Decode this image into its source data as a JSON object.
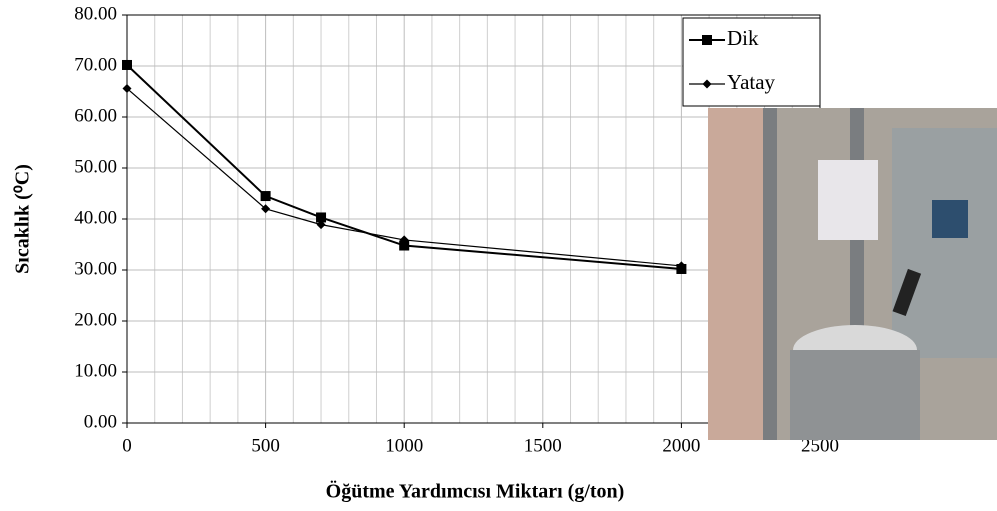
{
  "chart_data": {
    "type": "line",
    "x_label": "Öğütme Yardımcısı Miktarı (g/ton)",
    "y_label": "Sıcaklık (⁰C)",
    "series": [
      {
        "name": "Dik",
        "color": "#000000",
        "marker": "square",
        "x": [
          0,
          500,
          700,
          1000,
          2000
        ],
        "values": [
          70.2,
          44.5,
          40.3,
          34.8,
          30.2
        ]
      },
      {
        "name": "Yatay",
        "color": "#000000",
        "marker": "diamond",
        "x": [
          0,
          500,
          700,
          1000,
          2000
        ],
        "values": [
          65.6,
          42.0,
          38.9,
          35.9,
          30.8
        ]
      }
    ],
    "xlim": [
      0,
      2500
    ],
    "xticks": [
      0,
      500,
      1000,
      1500,
      2000,
      2500
    ],
    "ylim": [
      0,
      80
    ],
    "yticks": [
      {
        "value": 0,
        "label": "0.00"
      },
      {
        "value": 10,
        "label": "10.00"
      },
      {
        "value": 20,
        "label": "20.00"
      },
      {
        "value": 30,
        "label": "30.00"
      },
      {
        "value": 40,
        "label": "40.00"
      },
      {
        "value": 50,
        "label": "50.00"
      },
      {
        "value": 60,
        "label": "60.00"
      },
      {
        "value": 70,
        "label": "70.00"
      },
      {
        "value": 80,
        "label": "80.00"
      }
    ],
    "grid": true,
    "legend": "upper right"
  }
}
